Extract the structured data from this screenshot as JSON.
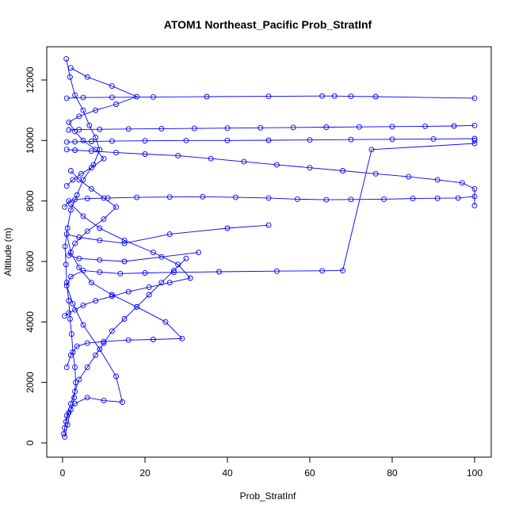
{
  "chart_data": {
    "type": "line",
    "title": "ATOM1 Northeast_Pacific Prob_StratInf",
    "xlabel": "Prob_StratInf",
    "ylabel": "Altitude (m)",
    "xlim": [
      0,
      100
    ],
    "ylim": [
      0,
      12700
    ],
    "x_ticks": [
      0,
      20,
      40,
      60,
      80,
      100
    ],
    "y_ticks": [
      0,
      2000,
      4000,
      6000,
      8000,
      10000,
      12000
    ],
    "x_tick_labels": [
      "0",
      "20",
      "40",
      "60",
      "80",
      "100"
    ],
    "y_tick_labels": [
      "0",
      "2000",
      "4000",
      "6000",
      "8000",
      "10000",
      "12000"
    ],
    "grid": false,
    "legend": "none",
    "marker": "open-circle",
    "color": "#0000ff",
    "series": [
      {
        "x": [
          0.5,
          1.2,
          2.0,
          2.8,
          3.2,
          3.0,
          2.5,
          2.2,
          1.8,
          1.5,
          1.0,
          0.8,
          0.6,
          1.2,
          2.0,
          3.5,
          5.0,
          7.5,
          9.0,
          8.0,
          6.5,
          5.0,
          3.0,
          1.8,
          0.9
        ],
        "y": [
          200,
          600,
          1100,
          1500,
          2000,
          2500,
          3000,
          3600,
          4100,
          4700,
          5300,
          5900,
          6500,
          7100,
          7700,
          8200,
          8700,
          9200,
          9700,
          10100,
          10500,
          11000,
          11500,
          12100,
          12700
        ]
      },
      {
        "x": [
          0.3,
          0.8,
          1.5,
          3.0,
          6.0,
          10.0,
          14.5,
          13.0,
          9.0,
          5.0,
          2.5,
          1.0,
          2.0,
          5.0,
          9.0,
          14.0,
          20.0,
          27.0,
          38.0,
          52.0,
          63.0,
          68.0,
          75.0,
          100.0,
          100.0
        ],
        "y": [
          300,
          700,
          1000,
          1300,
          1500,
          1400,
          1350,
          2200,
          3100,
          3900,
          4600,
          5200,
          5500,
          5700,
          5650,
          5600,
          5620,
          5640,
          5660,
          5680,
          5690,
          5700,
          9700,
          9900,
          10000
        ]
      },
      {
        "x": [
          1.0,
          2.0,
          3.5,
          6.0,
          10.0,
          16.0,
          22.0,
          29.0,
          25.0,
          18.0,
          12.0,
          7.0,
          4.0,
          2.0,
          1.0,
          4.0,
          9.0,
          15.0,
          26.0,
          40.0,
          50.0
        ],
        "y": [
          2500,
          2900,
          3200,
          3300,
          3350,
          3400,
          3420,
          3450,
          4000,
          4500,
          4900,
          5300,
          5800,
          6300,
          6900,
          6800,
          6700,
          6600,
          6900,
          7100,
          7200
        ]
      },
      {
        "x": [
          0.5,
          1.5,
          3.0,
          6.0,
          11.0,
          18.0,
          26.0,
          34.0,
          42.0,
          50.0,
          57.0,
          64.0,
          70.0,
          78.0,
          85.0,
          91.0,
          96.0,
          100.0
        ],
        "y": [
          7800,
          8000,
          8050,
          8080,
          8100,
          8120,
          8130,
          8140,
          8120,
          8100,
          8060,
          8040,
          8050,
          8060,
          8080,
          8090,
          8100,
          8150
        ]
      },
      {
        "x": [
          100.0,
          100.0,
          97.0,
          91.0,
          84.0,
          76.0,
          68.0,
          60.0,
          52.0,
          44.0,
          36.0,
          28.0,
          20.0,
          13.0,
          7.0,
          3.0,
          1.0
        ],
        "y": [
          7850,
          8400,
          8600,
          8700,
          8800,
          8900,
          9000,
          9100,
          9200,
          9300,
          9400,
          9500,
          9550,
          9600,
          9650,
          9680,
          9700
        ]
      },
      {
        "x": [
          1.0,
          3.0,
          7.0,
          12.0,
          20.0,
          30.0,
          40.0,
          50.0,
          60.0,
          70.0,
          80.0,
          90.0,
          100.0
        ],
        "y": [
          9950,
          9960,
          9970,
          9980,
          9990,
          10000,
          10000,
          10010,
          10020,
          10030,
          10040,
          10050,
          10060
        ]
      },
      {
        "x": [
          100.0,
          95.0,
          88.0,
          80.0,
          72.0,
          64.0,
          56.0,
          48.0,
          40.0,
          32.0,
          24.0,
          16.0,
          9.0,
          4.0,
          1.5
        ],
        "y": [
          10500,
          10480,
          10470,
          10460,
          10450,
          10440,
          10430,
          10420,
          10410,
          10400,
          10390,
          10380,
          10370,
          10360,
          10350
        ]
      },
      {
        "x": [
          1.0,
          5.0,
          12.0,
          22.0,
          35.0,
          50.0,
          63.0,
          66.0,
          70.0,
          76.0,
          100.0
        ],
        "y": [
          11400,
          11420,
          11430,
          11440,
          11450,
          11460,
          11470,
          11470,
          11460,
          11450,
          11400
        ]
      },
      {
        "x": [
          2.0,
          4.0,
          7.0,
          10.0,
          13.0,
          10.0,
          6.0,
          3.0,
          1.5,
          4.0,
          9.0,
          15.0,
          24.0,
          33.0
        ],
        "y": [
          9000,
          8700,
          8400,
          8100,
          7800,
          7400,
          7000,
          6600,
          6200,
          6100,
          6050,
          6000,
          6150,
          6300
        ]
      },
      {
        "x": [
          0.5,
          1.5,
          3.0,
          5.0,
          8.0,
          12.0,
          16.0,
          21.0,
          26.0,
          31.0,
          28.0,
          22.0,
          15.0,
          9.0,
          5.0,
          2.0
        ],
        "y": [
          4200,
          4300,
          4400,
          4550,
          4700,
          4850,
          5000,
          5150,
          5300,
          5450,
          5900,
          6300,
          6700,
          7100,
          7500,
          7900
        ]
      },
      {
        "x": [
          1.0,
          2.5,
          4.5,
          7.0,
          10.0,
          8.0,
          5.0,
          3.0,
          1.5,
          4.0,
          8.0,
          13.0,
          18.0,
          12.0,
          6.0,
          2.0
        ],
        "y": [
          8500,
          8700,
          8900,
          9100,
          9400,
          9700,
          10000,
          10300,
          10600,
          10800,
          11000,
          11200,
          11450,
          11800,
          12100,
          12400
        ]
      },
      {
        "x": [
          0.5,
          1.0,
          2.0,
          3.0,
          4.0,
          6.0,
          8.0,
          10.0,
          12.0,
          15.0,
          18.0,
          21.0,
          24.0,
          27.0,
          30.0
        ],
        "y": [
          500,
          900,
          1300,
          1700,
          2100,
          2500,
          2900,
          3300,
          3700,
          4100,
          4500,
          4900,
          5300,
          5700,
          6100
        ]
      }
    ]
  }
}
